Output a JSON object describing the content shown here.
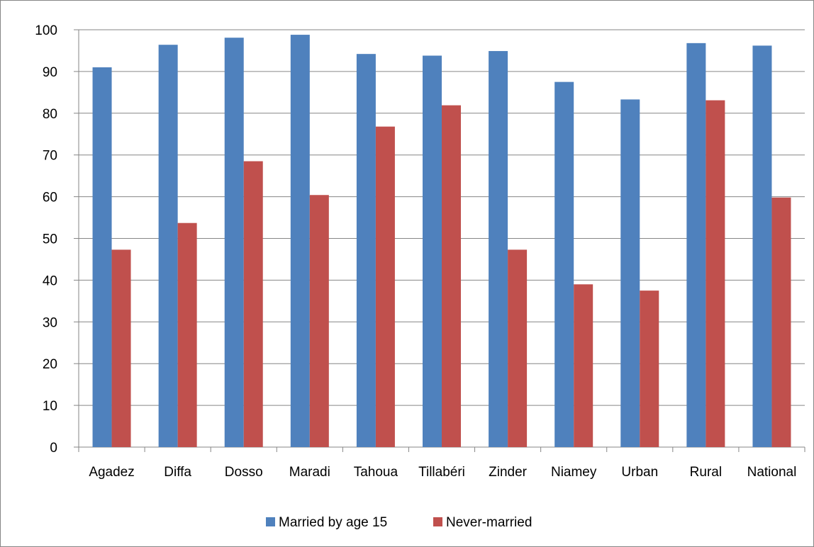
{
  "chart_data": {
    "type": "bar",
    "title": "",
    "xlabel": "",
    "ylabel": "",
    "ylim": [
      0,
      100
    ],
    "yticks": [
      0,
      10,
      20,
      30,
      40,
      50,
      60,
      70,
      80,
      90,
      100
    ],
    "grid": true,
    "legend_position": "bottom",
    "categories": [
      "Agadez",
      "Diffa",
      "Dosso",
      "Maradi",
      "Tahoua",
      "Tillabéri",
      "Zinder",
      "Niamey",
      "Urban",
      "Rural",
      "National"
    ],
    "series": [
      {
        "name": "Married by age 15",
        "color": "#4F81BD",
        "values": [
          91.0,
          96.4,
          98.1,
          98.8,
          94.2,
          93.8,
          94.9,
          87.5,
          83.3,
          96.8,
          96.2
        ]
      },
      {
        "name": "Never-married",
        "color": "#C0504D",
        "values": [
          47.3,
          53.7,
          68.5,
          60.4,
          76.8,
          81.9,
          47.3,
          39.0,
          37.5,
          83.1,
          59.8
        ]
      }
    ]
  }
}
